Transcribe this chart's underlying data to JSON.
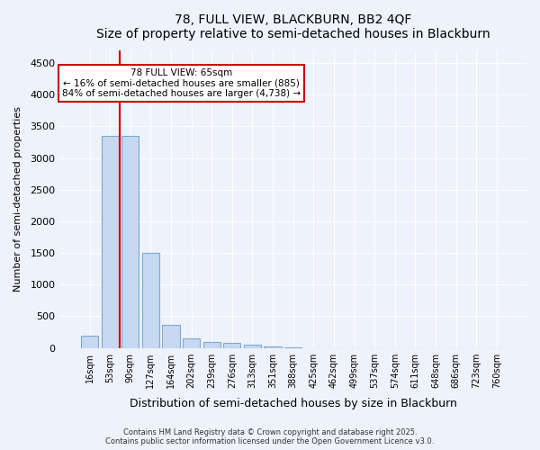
{
  "title": "78, FULL VIEW, BLACKBURN, BB2 4QF",
  "subtitle": "Size of property relative to semi-detached houses in Blackburn",
  "xlabel": "Distribution of semi-detached houses by size in Blackburn",
  "ylabel": "Number of semi-detached properties",
  "footnote1": "Contains HM Land Registry data © Crown copyright and database right 2025.",
  "footnote2": "Contains public sector information licensed under the Open Government Licence v3.0.",
  "annotation_title": "78 FULL VIEW: 65sqm",
  "annotation_line1": "← 16% of semi-detached houses are smaller (885)",
  "annotation_line2": "84% of semi-detached houses are larger (4,738) →",
  "bar_color": "#c8d8f0",
  "bar_edge_color": "#7aaad0",
  "vline_color": "#cc0000",
  "annotation_box_edge": "#cc0000",
  "background_color": "#eef2fb",
  "categories": [
    "16sqm",
    "53sqm",
    "90sqm",
    "127sqm",
    "164sqm",
    "202sqm",
    "239sqm",
    "276sqm",
    "313sqm",
    "351sqm",
    "388sqm",
    "425sqm",
    "462sqm",
    "499sqm",
    "537sqm",
    "574sqm",
    "611sqm",
    "648sqm",
    "686sqm",
    "723sqm",
    "760sqm"
  ],
  "values": [
    200,
    3350,
    3350,
    1500,
    360,
    150,
    100,
    75,
    55,
    30,
    10,
    0,
    0,
    0,
    0,
    0,
    0,
    0,
    0,
    0,
    0
  ],
  "ylim": [
    0,
    4700
  ],
  "yticks": [
    0,
    500,
    1000,
    1500,
    2000,
    2500,
    3000,
    3500,
    4000,
    4500
  ],
  "vline_x_index": 1.5,
  "figsize": [
    6.0,
    5.0
  ],
  "dpi": 100
}
